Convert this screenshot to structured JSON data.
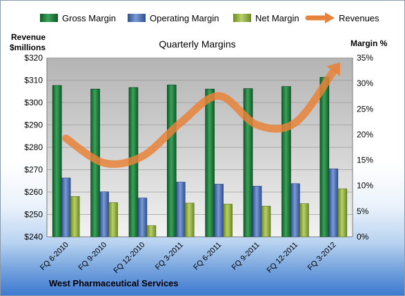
{
  "chart_data": {
    "type": "bar",
    "title": "Quarterly Margins",
    "left_axis_label_line1": "Revenue",
    "left_axis_label_line2": "$millions",
    "right_axis_label": "Margin %",
    "footer": "West Pharmaceutical Services",
    "categories": [
      "FQ 6-2010",
      "FQ 9-2010",
      "FQ 12-2010",
      "FQ 3-2011",
      "FQ 6-2011",
      "FQ 9-2011",
      "FQ 12-2011",
      "FQ 3-2012"
    ],
    "left_axis": {
      "min": 240,
      "max": 320,
      "step": 10,
      "prefix": "$"
    },
    "right_axis": {
      "min": 0,
      "max": 35,
      "step": 5,
      "suffix": "%"
    },
    "series": [
      {
        "name": "Gross Margin",
        "axis": "right",
        "kind": "bar",
        "color": "#1f7a3c",
        "values": [
          29.6,
          28.9,
          29.2,
          29.7,
          28.9,
          29.0,
          29.4,
          31.2
        ]
      },
      {
        "name": "Operating Margin",
        "axis": "right",
        "kind": "bar",
        "color": "#4a6fb5",
        "values": [
          11.5,
          8.8,
          7.6,
          10.7,
          10.3,
          9.9,
          10.4,
          13.3
        ]
      },
      {
        "name": "Net Margin",
        "axis": "right",
        "kind": "bar",
        "color": "#8fae3e",
        "values": [
          7.9,
          6.7,
          2.2,
          6.6,
          6.4,
          6.0,
          6.5,
          9.4
        ]
      },
      {
        "name": "Revenues",
        "axis": "left",
        "kind": "line",
        "color": "#e8823a",
        "values": [
          284,
          273,
          276,
          291,
          303,
          290,
          291,
          314
        ]
      }
    ],
    "grid": true,
    "legend_position": "top"
  }
}
